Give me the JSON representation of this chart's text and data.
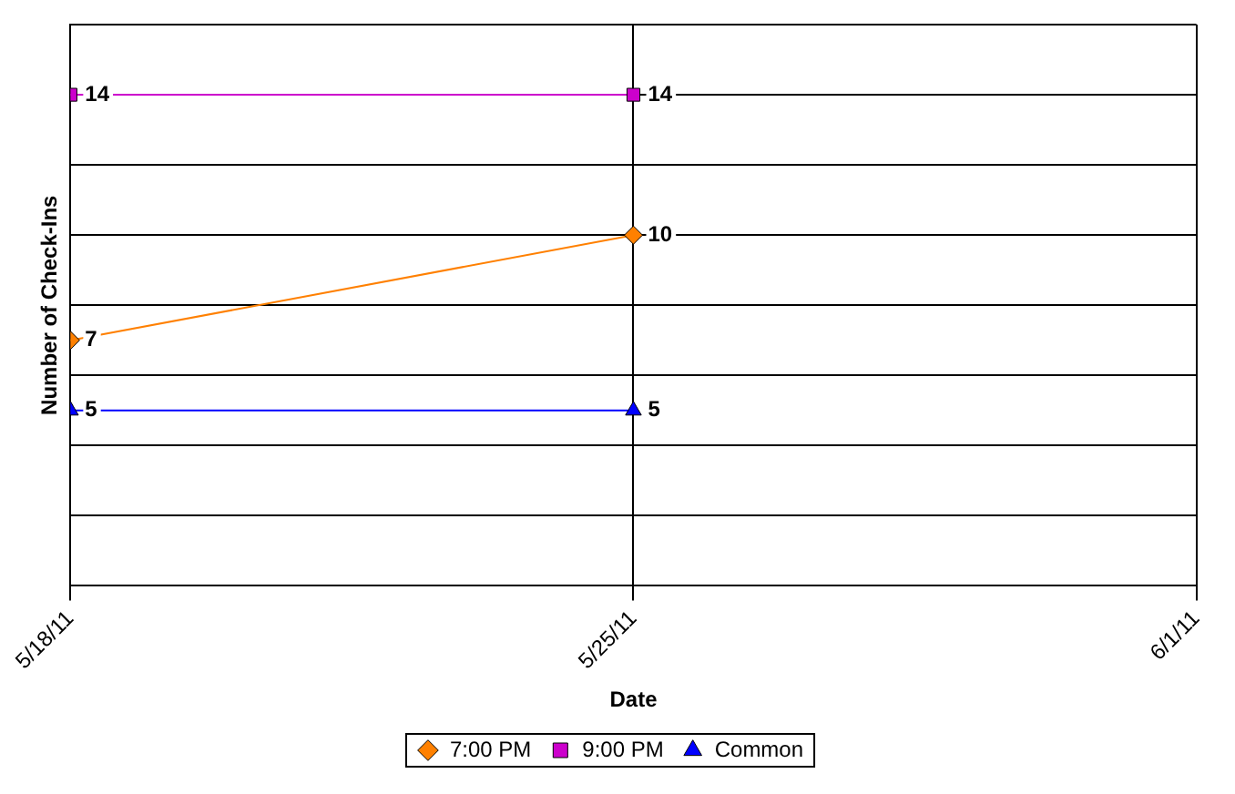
{
  "chart_data": {
    "type": "line",
    "xlabel": "Date",
    "ylabel": "Number of Check-Ins",
    "x": [
      "2011-05-18",
      "2011-05-25"
    ],
    "series": [
      {
        "name": "7:00 PM",
        "color": "#ff8000",
        "marker": "diamond",
        "values": [
          7,
          10
        ]
      },
      {
        "name": "9:00 PM",
        "color": "#cc00cc",
        "marker": "square",
        "values": [
          14,
          14
        ]
      },
      {
        "name": "Common",
        "color": "#0000ff",
        "marker": "triangle",
        "values": [
          5,
          5
        ]
      }
    ],
    "xlim": [
      "2011-05-18",
      "2011-06-01"
    ],
    "xticks": [
      {
        "value": "2011-05-18",
        "label": "5/18/11"
      },
      {
        "value": "2011-05-25",
        "label": "5/25/11"
      },
      {
        "value": "2011-06-01",
        "label": "6/1/11"
      }
    ],
    "ylim": [
      0,
      16
    ],
    "yticks": [
      0,
      2,
      4,
      6,
      8,
      10,
      12,
      14,
      16
    ],
    "tick_labels": "x",
    "grid": true,
    "legend": "bottom",
    "data_labels": true
  }
}
